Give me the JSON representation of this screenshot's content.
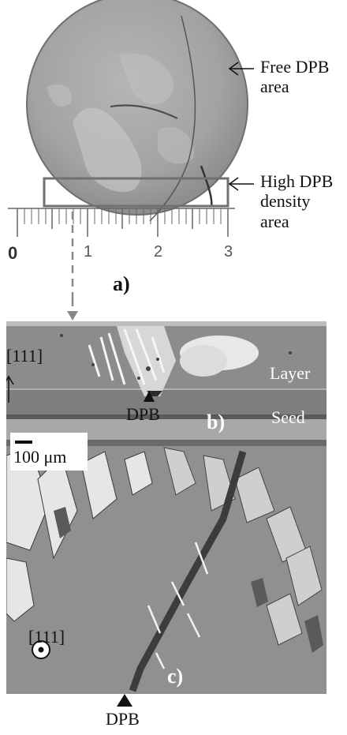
{
  "annotations": {
    "free_dpb": [
      "Free DPB",
      "area"
    ],
    "high_dpb": [
      "High DPB",
      "density",
      "area"
    ]
  },
  "ruler": {
    "ticks": [
      "0",
      "1",
      "2",
      "3"
    ]
  },
  "panel_a": "a)",
  "panel_b": {
    "letter": "b)",
    "layer": "Layer",
    "seed": "Seed",
    "dpb": "DPB"
  },
  "direction_top": "[111]",
  "scale_bar": "100 μm",
  "panel_c": {
    "letter": "c)",
    "direction": "[111]"
  },
  "bottom_dpb": "DPB"
}
